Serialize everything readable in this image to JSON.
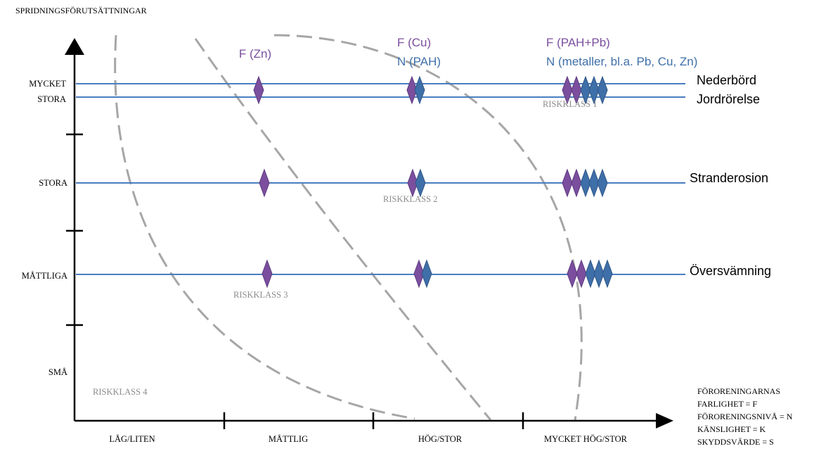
{
  "y_axis": {
    "title": "SPRIDNINGSFÖRUTSÄTTNINGAR",
    "levels": [
      {
        "line1": "MYCKET",
        "line2": "STORA"
      },
      {
        "line1": "STORA",
        "line2": ""
      },
      {
        "line1": "MÅTTLIGA",
        "line2": ""
      },
      {
        "line1": "SMÅ",
        "line2": ""
      }
    ]
  },
  "x_axis": {
    "levels": [
      "LÅG/LITEN",
      "MÅTTLIG",
      "HÖG/STOR",
      "MYCKET HÖG/STOR"
    ]
  },
  "group_labels": [
    {
      "f": "F (Zn)",
      "n": ""
    },
    {
      "f": "F (Cu)",
      "n": "N (PAH)"
    },
    {
      "f": "F (PAH+Pb)",
      "n": "N (metaller, bl.a. Pb, Cu, Zn)"
    }
  ],
  "processes": [
    {
      "name": "Nederbörd"
    },
    {
      "name": "Jordrörelse"
    },
    {
      "name": "Stranderosion"
    },
    {
      "name": "Översvämning"
    }
  ],
  "risk_classes": [
    "RISKKLASS 1",
    "RISKKLASS 2",
    "RISKKLASS 3",
    "RISKKLASS 4"
  ],
  "legend": {
    "lines": [
      "FÖRORENINGARNAS",
      "FARLIGHET = F",
      "FÖRORENINGSNIVÅ  = N",
      "KÄNSLIGHET = K",
      "SKYDDSVÄRDE = S"
    ]
  },
  "colors": {
    "axis": "#000000",
    "process_line": "#4a7ebf",
    "f_marker": "#7b4f9e",
    "n_marker": "#3f6fa8",
    "boundary": "#a6a6a6",
    "risk_text": "#8c8c8c"
  }
}
